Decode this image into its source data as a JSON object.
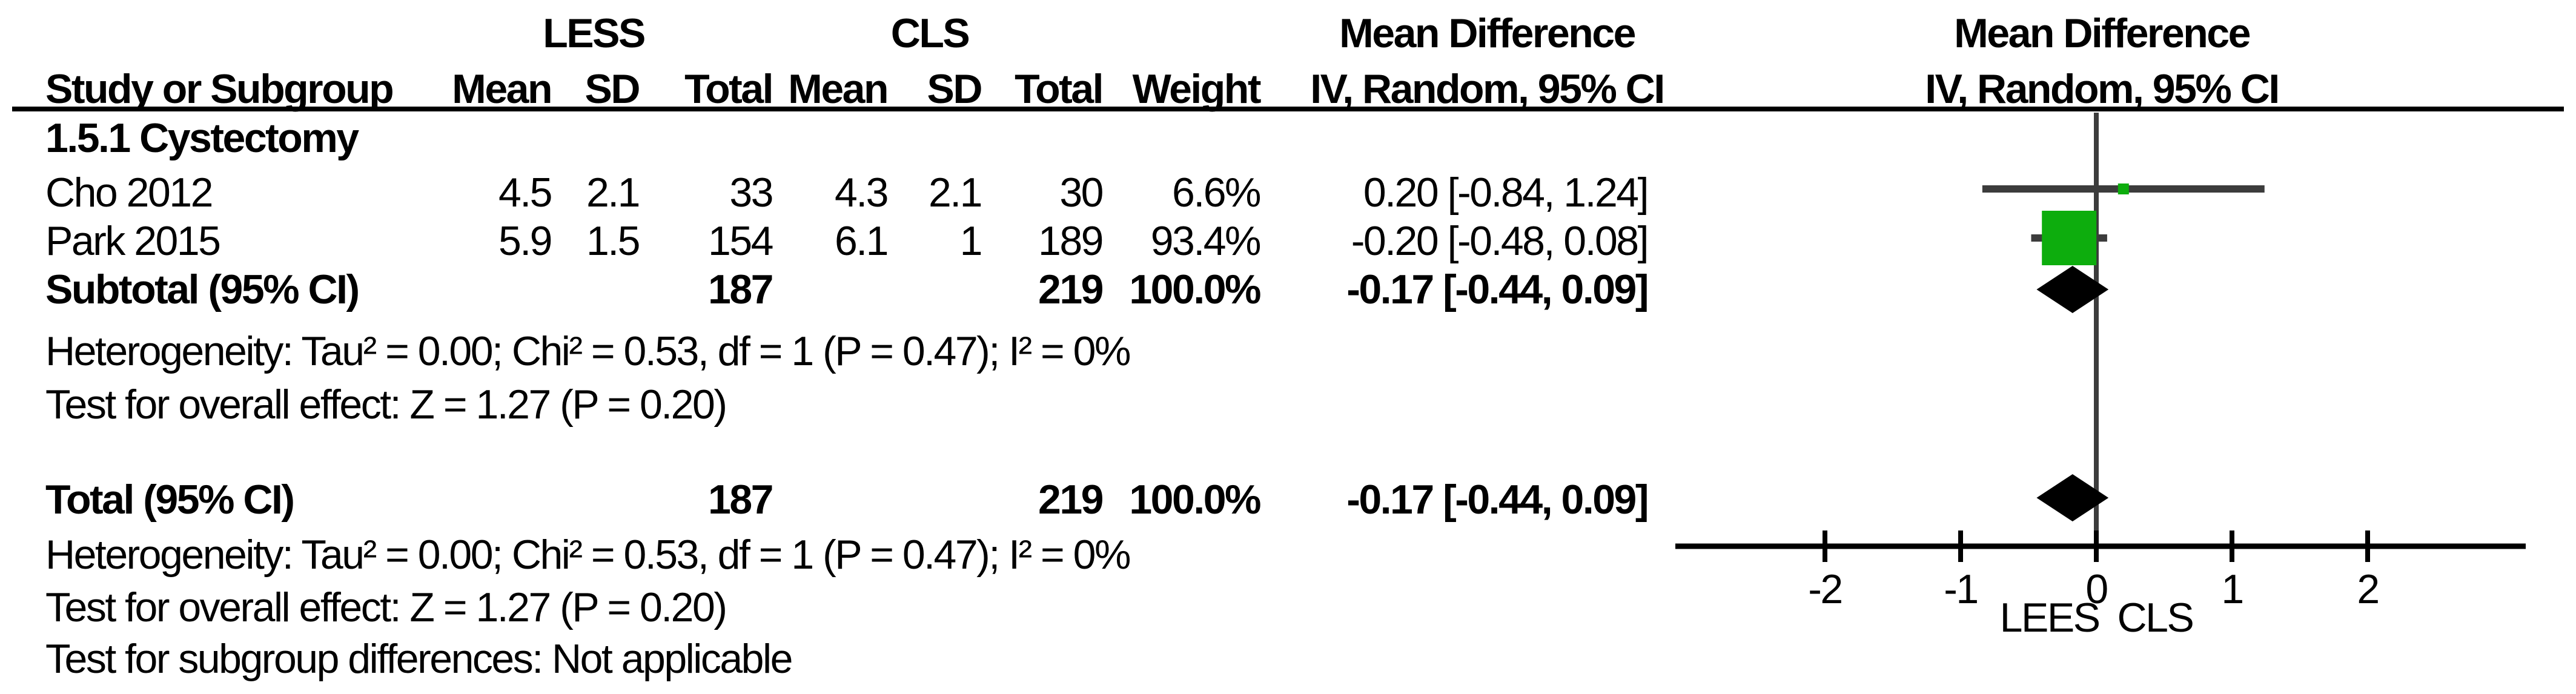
{
  "table": {
    "headers": {
      "group_less": "LESS",
      "group_cls": "CLS",
      "study": "Study or Subgroup",
      "mean": "Mean",
      "sd": "SD",
      "total": "Total",
      "weight": "Weight",
      "md_line1": "Mean Difference",
      "md_line2": "IV, Random, 95% CI",
      "plot_line1": "Mean Difference",
      "plot_line2": "IV, Random, 95% CI"
    },
    "subgroup_label": "1.5.1 Cystectomy",
    "rows": [
      {
        "study": "Cho 2012",
        "less_mean": "4.5",
        "less_sd": "2.1",
        "less_total": "33",
        "cls_mean": "4.3",
        "cls_sd": "2.1",
        "cls_total": "30",
        "weight": "6.6%",
        "md_ci": "0.20 [-0.84, 1.24]"
      },
      {
        "study": "Park 2015",
        "less_mean": "5.9",
        "less_sd": "1.5",
        "less_total": "154",
        "cls_mean": "6.1",
        "cls_sd": "1",
        "cls_total": "189",
        "weight": "93.4%",
        "md_ci": "-0.20 [-0.48, 0.08]"
      }
    ],
    "subtotal_row": {
      "study": "Subtotal (95% CI)",
      "less_total": "187",
      "cls_total": "219",
      "weight": "100.0%",
      "md_ci": "-0.17 [-0.44, 0.09]"
    },
    "subtotal_notes": [
      "Heterogeneity: Tau² = 0.00; Chi² = 0.53, df = 1 (P = 0.47); I² = 0%",
      "Test for overall effect: Z = 1.27 (P = 0.20)"
    ],
    "total_row": {
      "study": "Total (95% CI)",
      "less_total": "187",
      "cls_total": "219",
      "weight": "100.0%",
      "md_ci": "-0.17 [-0.44, 0.09]"
    },
    "total_notes": [
      "Heterogeneity: Tau² = 0.00; Chi² = 0.53, df = 1 (P = 0.47); I² = 0%",
      "Test for overall effect: Z = 1.27 (P = 0.20)",
      "Test for subgroup differences: Not applicable"
    ]
  },
  "axis": {
    "ticks": [
      "-2",
      "-1",
      "0",
      "1",
      "2"
    ],
    "label_left": "LEES",
    "label_right": "CLS"
  },
  "colors": {
    "marker_green": "#0DAD0D",
    "ci_gray": "#3C3C3C",
    "axis_black": "#000000",
    "text": "#000000",
    "background": "#FFFFFF"
  },
  "chart_data": {
    "type": "scatter",
    "title": "Forest plot: Mean Difference, IV, Random, 95% CI (LESS vs CLS)",
    "xlabel": "LEES  CLS",
    "x_ticks": [
      -2,
      -1,
      0,
      1,
      2
    ],
    "xlim": [
      -3.1,
      3.2
    ],
    "grid": false,
    "studies": [
      {
        "name": "Cho 2012",
        "est": 0.2,
        "ci_low": -0.84,
        "ci_high": 1.24,
        "weight_pct": 6.6
      },
      {
        "name": "Park 2015",
        "est": -0.2,
        "ci_low": -0.48,
        "ci_high": 0.08,
        "weight_pct": 93.4
      }
    ],
    "subtotal": {
      "label": "Subtotal (95% CI)",
      "est": -0.17,
      "ci_low": -0.44,
      "ci_high": 0.09
    },
    "total": {
      "label": "Total (95% CI)",
      "est": -0.17,
      "ci_low": -0.44,
      "ci_high": 0.09
    }
  }
}
